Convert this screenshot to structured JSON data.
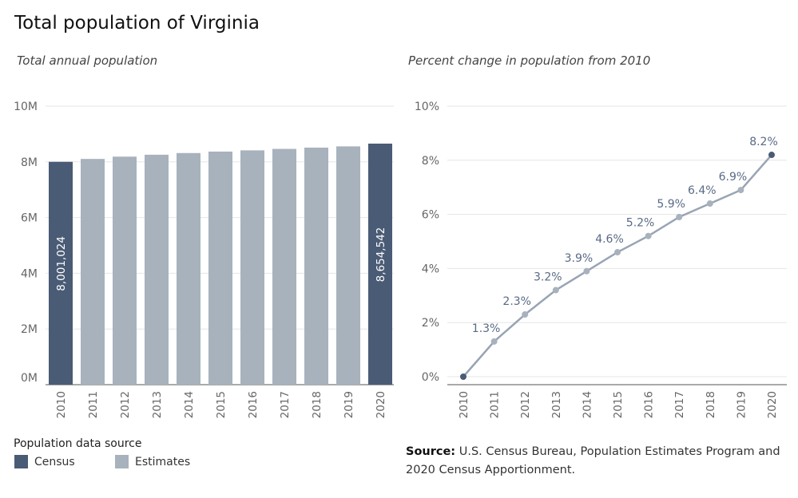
{
  "title": "Total population of Virginia",
  "colors": {
    "census": "#4a5b75",
    "estimates": "#a8b2bd",
    "line": "#98a4b3",
    "label": "#5a6a85",
    "grid": "#e6e6e6",
    "axis": "#555555",
    "tick_text": "#666666"
  },
  "chart_data": [
    {
      "type": "bar",
      "subtitle": "Total annual population",
      "categories": [
        "2010",
        "2011",
        "2012",
        "2013",
        "2014",
        "2015",
        "2016",
        "2017",
        "2018",
        "2019",
        "2020"
      ],
      "values": [
        8001024,
        8105000,
        8187000,
        8256000,
        8316000,
        8369000,
        8413000,
        8465000,
        8511000,
        8556000,
        8654542
      ],
      "source_type": [
        "Census",
        "Estimates",
        "Estimates",
        "Estimates",
        "Estimates",
        "Estimates",
        "Estimates",
        "Estimates",
        "Estimates",
        "Estimates",
        "Census"
      ],
      "data_labels": {
        "0": "8,001,024",
        "10": "8,654,542"
      },
      "y_ticks": [
        0,
        2000000,
        4000000,
        6000000,
        8000000,
        10000000
      ],
      "y_tick_labels": [
        "0M",
        "2M",
        "4M",
        "6M",
        "8M",
        "10M"
      ],
      "ylim": [
        0,
        10000000
      ],
      "grid": true
    },
    {
      "type": "line",
      "subtitle": "Percent change in population from 2010",
      "categories": [
        "2010",
        "2011",
        "2012",
        "2013",
        "2014",
        "2015",
        "2016",
        "2017",
        "2018",
        "2019",
        "2020"
      ],
      "values": [
        0.0,
        1.3,
        2.3,
        3.2,
        3.9,
        4.6,
        5.2,
        5.9,
        6.4,
        6.9,
        8.2
      ],
      "point_labels": [
        "",
        "1.3%",
        "2.3%",
        "3.2%",
        "3.9%",
        "4.6%",
        "5.2%",
        "5.9%",
        "6.4%",
        "6.9%",
        "8.2%"
      ],
      "source_type": [
        "Census",
        "Estimates",
        "Estimates",
        "Estimates",
        "Estimates",
        "Estimates",
        "Estimates",
        "Estimates",
        "Estimates",
        "Estimates",
        "Census"
      ],
      "y_ticks": [
        0,
        2,
        4,
        6,
        8,
        10
      ],
      "y_tick_labels": [
        "0%",
        "2%",
        "4%",
        "6%",
        "8%",
        "10%"
      ],
      "ylim": [
        0,
        10
      ],
      "grid": true
    }
  ],
  "legend": {
    "title": "Population data source",
    "items": [
      {
        "label": "Census"
      },
      {
        "label": "Estimates"
      }
    ]
  },
  "source": {
    "label": "Source:",
    "text": "U.S. Census Bureau, Population Estimates Program and 2020 Census Apportionment."
  }
}
